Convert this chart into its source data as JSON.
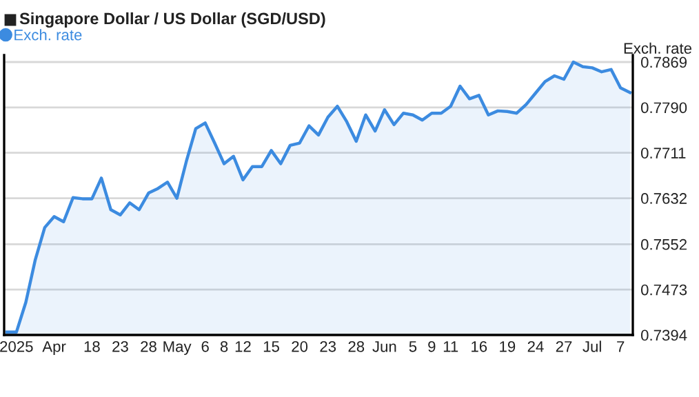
{
  "chart_data": {
    "type": "area",
    "title": "Singapore Dollar / US Dollar (SGD/USD)",
    "ylabel": "Exch. rate",
    "categories": [
      null,
      "2025",
      null,
      null,
      null,
      "Apr",
      null,
      null,
      null,
      "18",
      null,
      null,
      "23",
      null,
      null,
      "28",
      null,
      null,
      "May",
      null,
      null,
      "6",
      null,
      "8",
      null,
      "12",
      null,
      null,
      "15",
      null,
      null,
      "20",
      null,
      null,
      "23",
      null,
      null,
      "28",
      null,
      null,
      "Jun",
      null,
      null,
      "5",
      null,
      "9",
      null,
      "11",
      null,
      null,
      "16",
      null,
      null,
      "19",
      null,
      null,
      "24",
      null,
      null,
      "27",
      null,
      null,
      "Jul",
      null,
      null,
      "7",
      null
    ],
    "series": [
      {
        "name": "Exch. rate",
        "color": "#3c8be0",
        "values": [
          0.7399,
          0.7399,
          0.7451,
          0.7525,
          0.7581,
          0.76,
          0.7591,
          0.7633,
          0.7631,
          0.7631,
          0.7667,
          0.7612,
          0.7603,
          0.7624,
          0.7612,
          0.7641,
          0.7649,
          0.766,
          0.7632,
          0.7696,
          0.7753,
          0.7763,
          0.7728,
          0.7692,
          0.7705,
          0.7664,
          0.7687,
          0.7687,
          0.7715,
          0.7692,
          0.7724,
          0.7728,
          0.7758,
          0.7742,
          0.7773,
          0.7792,
          0.7765,
          0.7731,
          0.7777,
          0.7749,
          0.7786,
          0.776,
          0.778,
          0.7777,
          0.7768,
          0.778,
          0.778,
          0.7792,
          0.7827,
          0.7805,
          0.7811,
          0.7777,
          0.7784,
          0.7783,
          0.778,
          0.7795,
          0.7815,
          0.7835,
          0.7845,
          0.7839,
          0.7869,
          0.7861,
          0.7859,
          0.7852,
          0.7856,
          0.7824,
          0.7816
        ]
      }
    ],
    "ylim": [
      0.7394,
      0.7881
    ],
    "yticks": [
      {
        "value": 0.7394,
        "label": "0.7394"
      },
      {
        "value": 0.7473,
        "label": "0.7473"
      },
      {
        "value": 0.7552,
        "label": "0.7552"
      },
      {
        "value": 0.7632,
        "label": "0.7632"
      },
      {
        "value": 0.7711,
        "label": "0.7711"
      },
      {
        "value": 0.779,
        "label": "0.7790"
      },
      {
        "value": 0.7869,
        "label": "0.7869"
      }
    ],
    "grid": "y",
    "legend": "top left",
    "marker": "none",
    "line_style": "solid"
  }
}
